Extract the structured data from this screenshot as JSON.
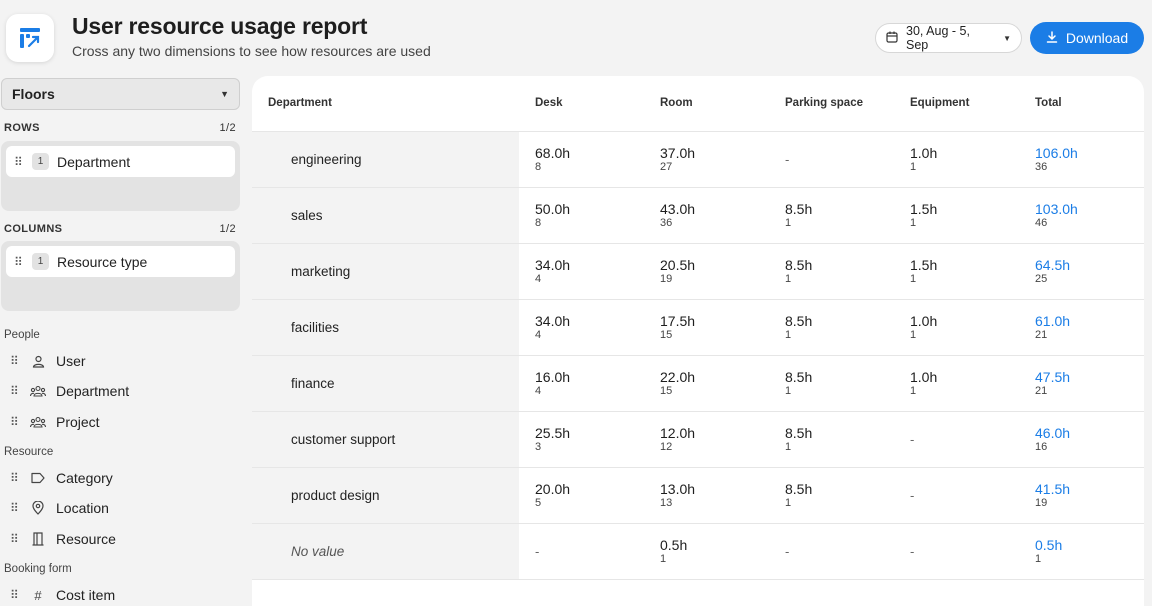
{
  "header": {
    "title": "User resource usage report",
    "subtitle": "Cross any two dimensions to see how resources are used",
    "date_range": "30, Aug - 5, Sep",
    "download_label": "Download"
  },
  "sidebar": {
    "floors_select": "Floors",
    "rows_label": "ROWS",
    "rows_count": "1/2",
    "row_chip": {
      "index": "1",
      "label": "Department"
    },
    "columns_label": "COLUMNS",
    "columns_count": "1/2",
    "column_chip": {
      "index": "1",
      "label": "Resource type"
    },
    "groups": [
      {
        "label": "People",
        "items": [
          {
            "label": "User",
            "icon": "user-icon"
          },
          {
            "label": "Department",
            "icon": "group-icon"
          },
          {
            "label": "Project",
            "icon": "group-icon"
          }
        ]
      },
      {
        "label": "Resource",
        "items": [
          {
            "label": "Category",
            "icon": "tag-icon"
          },
          {
            "label": "Location",
            "icon": "location-pin-icon"
          },
          {
            "label": "Resource",
            "icon": "resource-icon"
          }
        ]
      },
      {
        "label": "Booking form",
        "items": [
          {
            "label": "Cost item",
            "icon": "hash-icon"
          }
        ]
      }
    ]
  },
  "table": {
    "headers": [
      "Department",
      "Desk",
      "Room",
      "Parking space",
      "Equipment",
      "Total"
    ],
    "rows": [
      {
        "label": "engineering",
        "cells": [
          {
            "v": "68.0h",
            "c": "8"
          },
          {
            "v": "37.0h",
            "c": "27"
          },
          {
            "v": "-",
            "c": ""
          },
          {
            "v": "1.0h",
            "c": "1"
          },
          {
            "v": "106.0h",
            "c": "36"
          }
        ]
      },
      {
        "label": "sales",
        "cells": [
          {
            "v": "50.0h",
            "c": "8"
          },
          {
            "v": "43.0h",
            "c": "36"
          },
          {
            "v": "8.5h",
            "c": "1"
          },
          {
            "v": "1.5h",
            "c": "1"
          },
          {
            "v": "103.0h",
            "c": "46"
          }
        ]
      },
      {
        "label": "marketing",
        "cells": [
          {
            "v": "34.0h",
            "c": "4"
          },
          {
            "v": "20.5h",
            "c": "19"
          },
          {
            "v": "8.5h",
            "c": "1"
          },
          {
            "v": "1.5h",
            "c": "1"
          },
          {
            "v": "64.5h",
            "c": "25"
          }
        ]
      },
      {
        "label": "facilities",
        "cells": [
          {
            "v": "34.0h",
            "c": "4"
          },
          {
            "v": "17.5h",
            "c": "15"
          },
          {
            "v": "8.5h",
            "c": "1"
          },
          {
            "v": "1.0h",
            "c": "1"
          },
          {
            "v": "61.0h",
            "c": "21"
          }
        ]
      },
      {
        "label": "finance",
        "cells": [
          {
            "v": "16.0h",
            "c": "4"
          },
          {
            "v": "22.0h",
            "c": "15"
          },
          {
            "v": "8.5h",
            "c": "1"
          },
          {
            "v": "1.0h",
            "c": "1"
          },
          {
            "v": "47.5h",
            "c": "21"
          }
        ]
      },
      {
        "label": "customer support",
        "cells": [
          {
            "v": "25.5h",
            "c": "3"
          },
          {
            "v": "12.0h",
            "c": "12"
          },
          {
            "v": "8.5h",
            "c": "1"
          },
          {
            "v": "-",
            "c": ""
          },
          {
            "v": "46.0h",
            "c": "16"
          }
        ]
      },
      {
        "label": "product design",
        "cells": [
          {
            "v": "20.0h",
            "c": "5"
          },
          {
            "v": "13.0h",
            "c": "13"
          },
          {
            "v": "8.5h",
            "c": "1"
          },
          {
            "v": "-",
            "c": ""
          },
          {
            "v": "41.5h",
            "c": "19"
          }
        ]
      },
      {
        "label": "No value",
        "cells": [
          {
            "v": "-",
            "c": ""
          },
          {
            "v": "0.5h",
            "c": "1"
          },
          {
            "v": "-",
            "c": ""
          },
          {
            "v": "-",
            "c": ""
          },
          {
            "v": "0.5h",
            "c": "1"
          }
        ]
      }
    ]
  },
  "colors": {
    "accent": "#1b7de6"
  }
}
